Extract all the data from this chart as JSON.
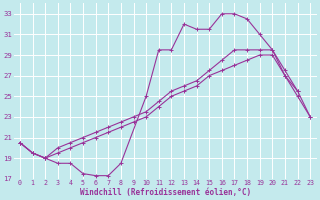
{
  "xlabel": "Windchill (Refroidissement éolien,°C)",
  "bg_color": "#c4eaed",
  "grid_color": "#ffffff",
  "line_color": "#993399",
  "ylim": [
    17,
    34
  ],
  "xlim": [
    -0.5,
    23.5
  ],
  "yticks": [
    17,
    19,
    21,
    23,
    25,
    27,
    29,
    31,
    33
  ],
  "xticks": [
    0,
    1,
    2,
    3,
    4,
    5,
    6,
    7,
    8,
    9,
    10,
    11,
    12,
    13,
    14,
    15,
    16,
    17,
    18,
    19,
    20,
    21,
    22,
    23
  ],
  "line1_x": [
    0,
    1,
    2,
    3,
    4,
    5,
    6,
    7,
    8,
    10,
    11,
    12,
    13,
    14,
    15,
    16,
    17,
    18,
    19,
    20,
    21,
    22
  ],
  "line1_y": [
    20.5,
    19.5,
    19.0,
    18.5,
    18.5,
    17.5,
    17.3,
    17.3,
    18.5,
    25.0,
    29.5,
    29.5,
    32.0,
    31.5,
    31.5,
    33.0,
    33.0,
    32.5,
    31.0,
    29.5,
    27.0,
    25.5
  ],
  "line2_x": [
    0,
    1,
    2,
    3,
    4,
    5,
    6,
    7,
    8,
    9,
    10,
    11,
    12,
    13,
    14,
    15,
    16,
    17,
    18,
    19,
    20,
    21,
    22,
    23
  ],
  "line2_y": [
    20.5,
    19.5,
    19.0,
    20.0,
    20.5,
    21.0,
    21.5,
    22.0,
    22.5,
    23.0,
    23.5,
    24.5,
    25.5,
    26.0,
    26.5,
    27.5,
    28.5,
    29.5,
    29.5,
    29.5,
    29.5,
    27.5,
    25.5,
    23.0
  ],
  "line3_x": [
    0,
    1,
    2,
    3,
    4,
    5,
    6,
    7,
    8,
    9,
    10,
    11,
    12,
    13,
    14,
    15,
    16,
    17,
    18,
    19,
    20,
    21,
    22,
    23
  ],
  "line3_y": [
    20.5,
    19.5,
    19.0,
    19.5,
    20.0,
    20.5,
    21.0,
    21.5,
    22.0,
    22.5,
    23.0,
    24.0,
    25.0,
    25.5,
    26.0,
    27.0,
    27.5,
    28.0,
    28.5,
    29.0,
    29.0,
    27.0,
    25.0,
    23.0
  ]
}
